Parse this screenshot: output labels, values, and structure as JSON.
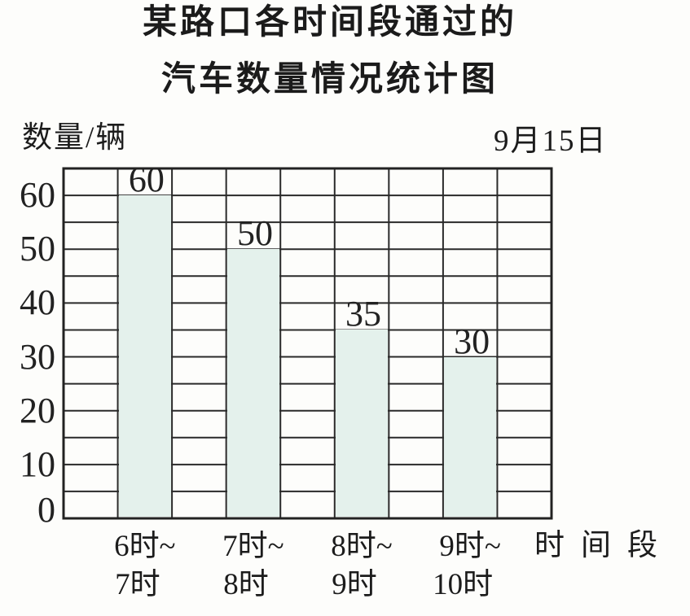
{
  "title": {
    "line1": "某路口各时间段通过的",
    "line2": "汽车数量情况统计图"
  },
  "labels": {
    "y_axis": "数量/辆",
    "date": "9月15日",
    "x_axis": "时间段"
  },
  "chart_data": {
    "type": "bar",
    "title": "某路口各时间段通过的汽车数量情况统计图",
    "date_annotation": "9月15日",
    "ylabel": "数量/辆",
    "xlabel": "时间段",
    "categories": [
      [
        "6时~",
        "7时"
      ],
      [
        "7时~",
        "8时"
      ],
      [
        "8时~",
        "9时"
      ],
      [
        "9时~",
        "10时"
      ]
    ],
    "values": [
      60,
      50,
      35,
      30
    ],
    "ylim": [
      0,
      65
    ],
    "y_ticks": [
      0,
      10,
      20,
      30,
      40,
      50,
      60
    ],
    "grid_step": 5,
    "grid": true,
    "legend": false,
    "bar_color": "#e4f1ec",
    "line_color": "#2a2a2a",
    "border_color": "#222222"
  }
}
